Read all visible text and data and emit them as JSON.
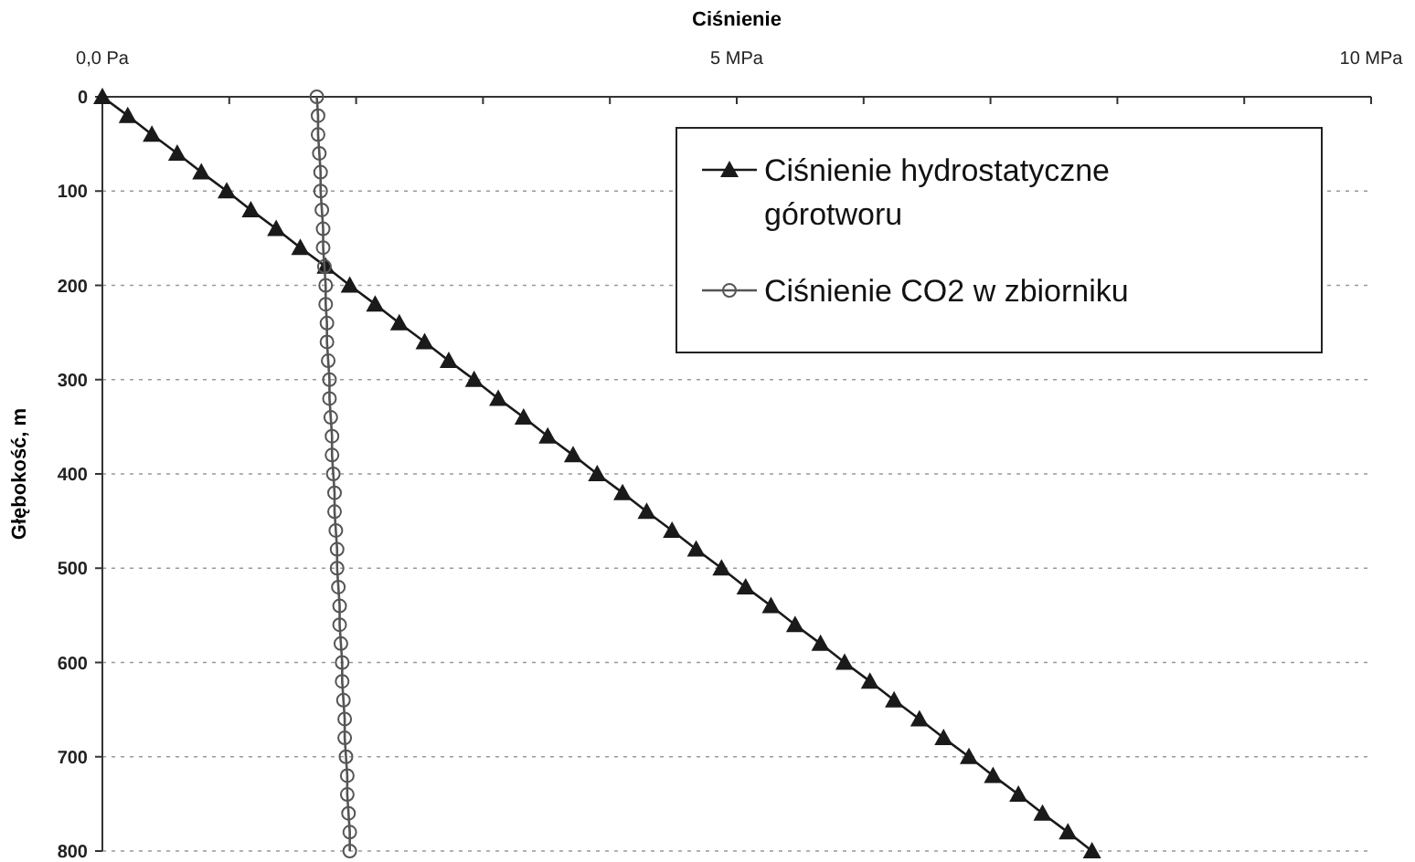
{
  "chart_data": {
    "type": "line",
    "xlabel": "Ciśnienie",
    "ylabel": "Głębokość, m",
    "xlim": [
      0,
      10
    ],
    "xticks": [
      {
        "value": 0,
        "label": "0,0  Pa"
      },
      {
        "value": 1,
        "label": null
      },
      {
        "value": 2,
        "label": null
      },
      {
        "value": 3,
        "label": null
      },
      {
        "value": 4,
        "label": null
      },
      {
        "value": 5,
        "label": "5 MPa"
      },
      {
        "value": 6,
        "label": null
      },
      {
        "value": 7,
        "label": null
      },
      {
        "value": 8,
        "label": null
      },
      {
        "value": 9,
        "label": null
      },
      {
        "value": 10,
        "label": "10 MPa"
      }
    ],
    "ylim": [
      800,
      0
    ],
    "yticks": [
      0,
      100,
      200,
      300,
      400,
      500,
      600,
      700,
      800
    ],
    "grid": "y",
    "legend": "top right",
    "line_style": "solid",
    "series": [
      {
        "name": "Ciśnienie hydrostatyczne górotworu",
        "color": "#1a1a1a",
        "marker": "triangle",
        "x": [
          0.0,
          0.2,
          0.39,
          0.59,
          0.78,
          0.98,
          1.17,
          1.37,
          1.56,
          1.76,
          1.95,
          2.15,
          2.34,
          2.54,
          2.73,
          2.93,
          3.12,
          3.32,
          3.51,
          3.71,
          3.9,
          4.1,
          4.29,
          4.49,
          4.68,
          4.88,
          5.07,
          5.27,
          5.46,
          5.66,
          5.85,
          6.05,
          6.24,
          6.44,
          6.63,
          6.83,
          7.02,
          7.22,
          7.41,
          7.61,
          7.8
        ],
        "values": [
          0,
          20,
          40,
          60,
          80,
          100,
          120,
          140,
          160,
          180,
          200,
          220,
          240,
          260,
          280,
          300,
          320,
          340,
          360,
          380,
          400,
          420,
          440,
          460,
          480,
          500,
          520,
          540,
          560,
          580,
          600,
          620,
          640,
          660,
          680,
          700,
          720,
          740,
          760,
          780,
          800
        ]
      },
      {
        "name": "Ciśnienie CO2 w zbiorniku",
        "color": "#555555",
        "marker": "circle",
        "x": [
          1.69,
          1.7,
          1.7,
          1.71,
          1.72,
          1.72,
          1.73,
          1.74,
          1.74,
          1.75,
          1.76,
          1.76,
          1.77,
          1.77,
          1.78,
          1.79,
          1.79,
          1.8,
          1.81,
          1.81,
          1.82,
          1.83,
          1.83,
          1.84,
          1.85,
          1.85,
          1.86,
          1.87,
          1.87,
          1.88,
          1.89,
          1.89,
          1.9,
          1.91,
          1.91,
          1.92,
          1.93,
          1.93,
          1.94,
          1.95,
          1.95
        ],
        "values": [
          0,
          20,
          40,
          60,
          80,
          100,
          120,
          140,
          160,
          180,
          200,
          220,
          240,
          260,
          280,
          300,
          320,
          340,
          360,
          380,
          400,
          420,
          440,
          460,
          480,
          500,
          520,
          540,
          560,
          580,
          600,
          620,
          640,
          660,
          680,
          700,
          720,
          740,
          760,
          780,
          800
        ]
      }
    ]
  }
}
